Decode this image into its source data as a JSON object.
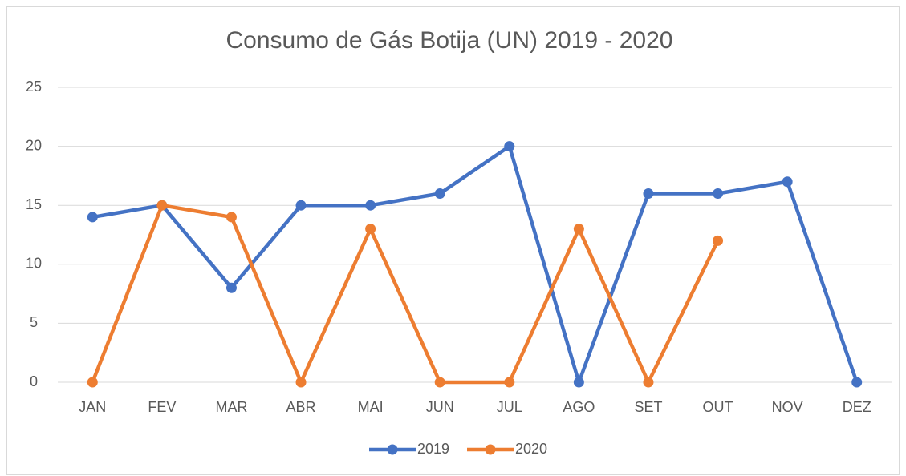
{
  "chart_data": {
    "type": "line",
    "title": "Consumo de Gás Botija (UN) 2019 - 2020",
    "categories": [
      "JAN",
      "FEV",
      "MAR",
      "ABR",
      "MAI",
      "JUN",
      "JUL",
      "AGO",
      "SET",
      "OUT",
      "NOV",
      "DEZ"
    ],
    "series": [
      {
        "name": "2019",
        "color": "#4472c4",
        "values": [
          14,
          15,
          8,
          15,
          15,
          16,
          20,
          0,
          16,
          16,
          17,
          0
        ]
      },
      {
        "name": "2020",
        "color": "#ed7d31",
        "values": [
          0,
          15,
          14,
          0,
          13,
          0,
          0,
          13,
          0,
          12,
          null,
          null
        ]
      }
    ],
    "ylim": [
      0,
      25
    ],
    "yticks": [
      0,
      5,
      10,
      15,
      20,
      25
    ],
    "grid": true,
    "legend": "bottom"
  }
}
